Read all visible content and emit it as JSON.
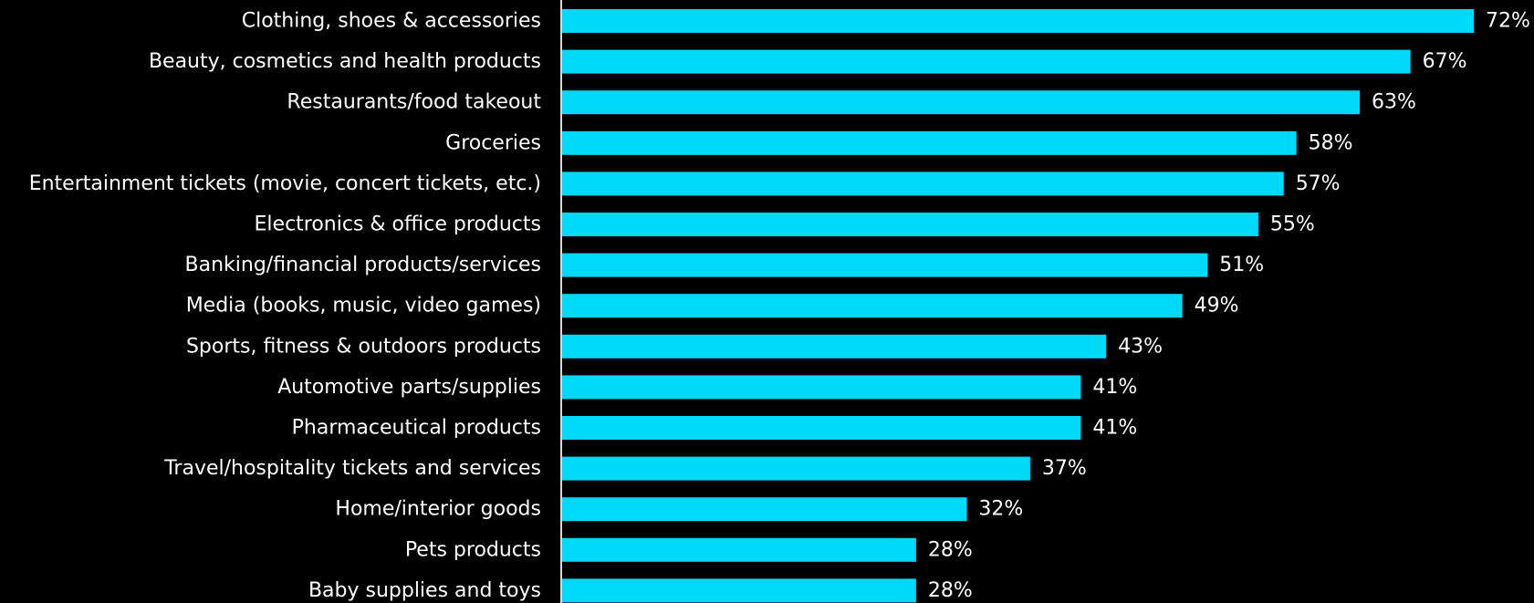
{
  "chart_data": {
    "type": "bar",
    "orientation": "horizontal",
    "categories": [
      "Clothing, shoes & accessories",
      "Beauty, cosmetics and health products",
      "Restaurants/food takeout",
      "Groceries",
      "Entertainment tickets (movie, concert tickets,  etc.)",
      "Electronics & office products",
      "Banking/financial products/services",
      "Media (books, music, video games)",
      "Sports, fitness & outdoors products",
      "Automotive parts/supplies",
      "Pharmaceutical products",
      "Travel/hospitality tickets and services",
      "Home/interior goods",
      "Pets products",
      "Baby supplies and toys"
    ],
    "values": [
      72,
      67,
      63,
      58,
      57,
      55,
      51,
      49,
      43,
      41,
      41,
      37,
      32,
      28,
      28
    ],
    "value_labels": [
      "72%",
      "67%",
      "63%",
      "58%",
      "57%",
      "55%",
      "51%",
      "49%",
      "43%",
      "41%",
      "41%",
      "37%",
      "32%",
      "28%",
      "28%"
    ],
    "xlim": [
      0,
      80
    ],
    "grid": false,
    "legend": "none",
    "colors": {
      "background": "#000000",
      "bar": "#00d8f8",
      "text": "#ffffff",
      "axis": "#d8d8d8"
    }
  }
}
